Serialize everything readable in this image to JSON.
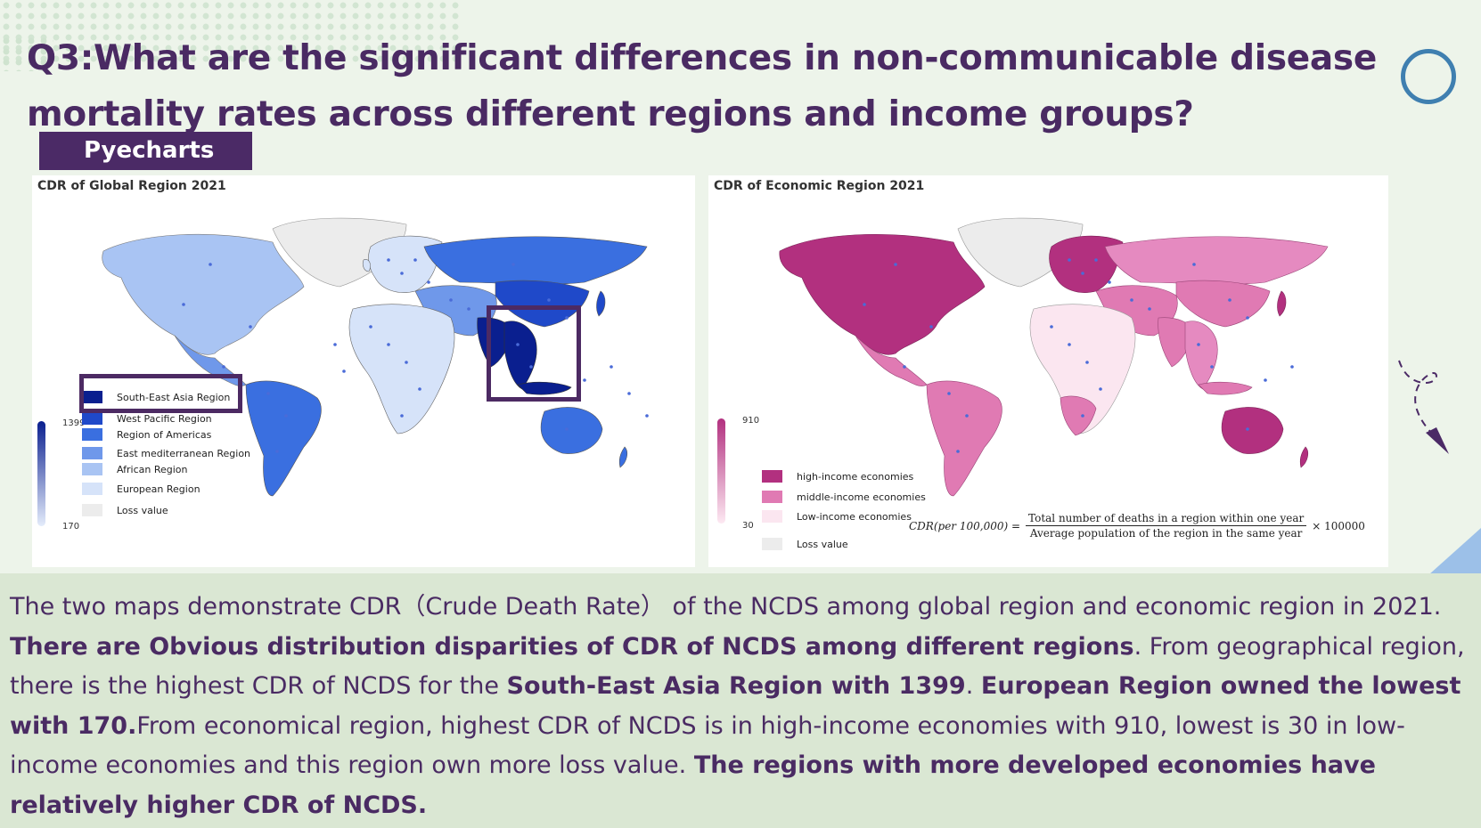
{
  "title": "Q3:What are the significant differences in non-communicable disease mortality rates across different regions and income groups?",
  "tag": "Pyecharts",
  "left_chart": {
    "title": "CDR of Global Region 2021",
    "scale_max": "1399",
    "scale_min": "170",
    "legend": [
      {
        "label": "South-East Asia  Region",
        "color": "#0a1f8f"
      },
      {
        "label": "West Pacific Region",
        "color": "#1f49c9"
      },
      {
        "label": "Region of Americas",
        "color": "#3a6fe0"
      },
      {
        "label": "East mediterranean Region",
        "color": "#6f98ea"
      },
      {
        "label": "African Region",
        "color": "#a9c4f3"
      },
      {
        "label": "European Region",
        "color": "#d6e3f9"
      },
      {
        "label": "Loss value",
        "color": "#ececec"
      }
    ]
  },
  "right_chart": {
    "title": "CDR of Economic Region 2021",
    "scale_max": "910",
    "scale_min": "30",
    "legend": [
      {
        "label": "high-income economies",
        "color": "#b2307f"
      },
      {
        "label": "middle-income economies",
        "color": "#e07ab3"
      },
      {
        "label": "Low-income economies",
        "color": "#fbe6f0"
      },
      {
        "label": "Loss value",
        "color": "#ececec"
      }
    ],
    "formula": {
      "lhs": "CDR(per 100,000) =",
      "numerator": "Total number of deaths in a region within one year",
      "denominator": "Average population of the region in the same year",
      "rhs": "× 100000"
    }
  },
  "paragraph": {
    "s1": "The two maps demonstrate CDR（Crude Death Rate） of the NCDS among global region and economic region in 2021. ",
    "s2": "There are Obvious distribution disparities of CDR of NCDS among different regions",
    "s3": ". From geographical region, there is the highest CDR of NCDS for the ",
    "s4": "South-East Asia Region with 1399",
    "s5": ". ",
    "s6": "European Region owned the lowest with 170.",
    "s7": "From economical region,  highest CDR of NCDS is in high-income economies with 910, lowest is 30 in low-income economies and this region own more loss value. ",
    "s8": "The regions with more developed economies have relatively higher CDR of NCDS."
  }
}
